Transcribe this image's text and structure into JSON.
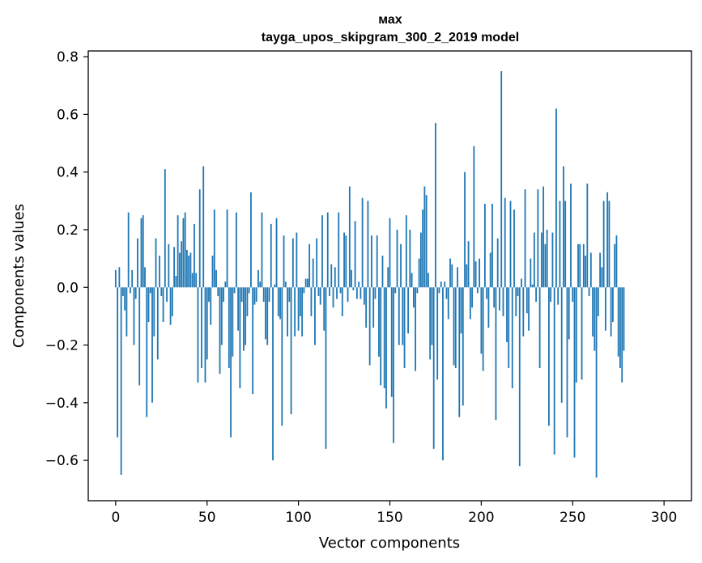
{
  "chart_data": {
    "type": "bar",
    "title_line1": "мах",
    "title_line2": "tayga_upos_skipgram_300_2_2019 model",
    "xlabel": "Vector components",
    "ylabel": "Components values",
    "xlim": [
      -15,
      315
    ],
    "ylim": [
      -0.74,
      0.82
    ],
    "xticks": [
      0,
      50,
      100,
      150,
      200,
      250,
      300
    ],
    "xtick_labels": [
      "0",
      "50",
      "100",
      "150",
      "200",
      "250",
      "300"
    ],
    "yticks": [
      -0.6,
      -0.4,
      -0.2,
      0.0,
      0.2,
      0.4,
      0.6,
      0.8
    ],
    "ytick_labels": [
      "−0.6",
      "−0.4",
      "−0.2",
      "0.0",
      "0.2",
      "0.4",
      "0.6",
      "0.8"
    ],
    "bar_color": "#1f77b4",
    "values": [
      0.06,
      -0.52,
      0.07,
      -0.65,
      -0.03,
      -0.08,
      -0.17,
      0.26,
      -0.02,
      0.06,
      -0.2,
      -0.04,
      0.17,
      -0.34,
      0.24,
      0.25,
      0.07,
      -0.45,
      -0.12,
      -0.02,
      -0.4,
      -0.17,
      0.17,
      -0.25,
      0.11,
      -0.03,
      -0.12,
      0.41,
      -0.05,
      0.15,
      -0.13,
      -0.1,
      0.14,
      0.04,
      0.25,
      0.12,
      0.16,
      0.24,
      0.26,
      0.13,
      0.11,
      0.12,
      0.05,
      0.22,
      0.05,
      -0.33,
      0.34,
      -0.28,
      0.42,
      -0.33,
      -0.25,
      -0.05,
      -0.13,
      0.11,
      0.27,
      0.06,
      -0.03,
      -0.3,
      -0.2,
      -0.05,
      0.02,
      0.27,
      -0.28,
      -0.52,
      -0.24,
      -0.02,
      0.26,
      -0.15,
      -0.35,
      -0.05,
      -0.22,
      -0.2,
      -0.1,
      -0.02,
      0.33,
      -0.37,
      -0.06,
      -0.05,
      0.06,
      0.02,
      0.26,
      -0.05,
      -0.18,
      -0.2,
      -0.05,
      0.22,
      -0.6,
      0.01,
      0.24,
      -0.1,
      -0.11,
      -0.48,
      0.18,
      0.02,
      -0.17,
      -0.05,
      -0.44,
      0.17,
      -0.17,
      0.19,
      -0.15,
      -0.1,
      -0.17,
      -0.02,
      0.03,
      0.03,
      0.15,
      -0.1,
      0.1,
      -0.2,
      0.17,
      -0.03,
      -0.06,
      0.25,
      -0.15,
      -0.56,
      0.26,
      -0.03,
      0.08,
      -0.07,
      0.07,
      -0.04,
      0.26,
      -0.02,
      -0.1,
      0.19,
      0.18,
      -0.05,
      0.35,
      0.06,
      -0.01,
      0.23,
      -0.04,
      0.02,
      -0.04,
      0.31,
      -0.06,
      -0.14,
      0.3,
      -0.27,
      0.18,
      -0.14,
      -0.04,
      0.18,
      -0.24,
      -0.34,
      0.11,
      -0.35,
      -0.42,
      0.07,
      0.24,
      -0.38,
      -0.54,
      -0.02,
      0.2,
      -0.2,
      0.15,
      -0.2,
      -0.28,
      0.25,
      -0.16,
      0.2,
      0.05,
      -0.07,
      -0.29,
      -0.02,
      0.1,
      0.19,
      0.27,
      0.35,
      0.32,
      0.05,
      -0.25,
      -0.2,
      -0.56,
      0.57,
      -0.32,
      -0.02,
      0.02,
      -0.6,
      0.02,
      -0.04,
      -0.11,
      0.1,
      0.08,
      -0.27,
      -0.28,
      0.07,
      -0.45,
      -0.16,
      -0.41,
      0.4,
      0.08,
      0.16,
      -0.11,
      -0.07,
      0.49,
      0.09,
      -0.02,
      0.1,
      -0.23,
      -0.29,
      0.29,
      -0.04,
      -0.14,
      0.12,
      0.29,
      -0.07,
      -0.46,
      0.17,
      -0.08,
      0.75,
      -0.1,
      0.31,
      -0.19,
      -0.28,
      0.3,
      -0.35,
      0.27,
      -0.1,
      -0.03,
      -0.62,
      0.03,
      -0.17,
      0.34,
      -0.09,
      -0.15,
      0.1,
      0.01,
      0.19,
      -0.05,
      0.34,
      -0.28,
      0.19,
      0.35,
      0.15,
      0.2,
      -0.48,
      -0.05,
      0.19,
      -0.58,
      0.62,
      -0.06,
      0.3,
      -0.4,
      0.42,
      0.3,
      -0.52,
      -0.18,
      0.36,
      -0.05,
      -0.59,
      -0.33,
      0.15,
      0.15,
      -0.32,
      0.15,
      0.11,
      0.36,
      -0.03,
      0.12,
      -0.17,
      -0.22,
      -0.66,
      -0.1,
      0.12,
      0.07,
      0.3,
      -0.15,
      0.33,
      0.3,
      -0.17,
      -0.12,
      0.15,
      0.18,
      -0.24,
      -0.28,
      -0.33,
      -0.22
    ]
  }
}
